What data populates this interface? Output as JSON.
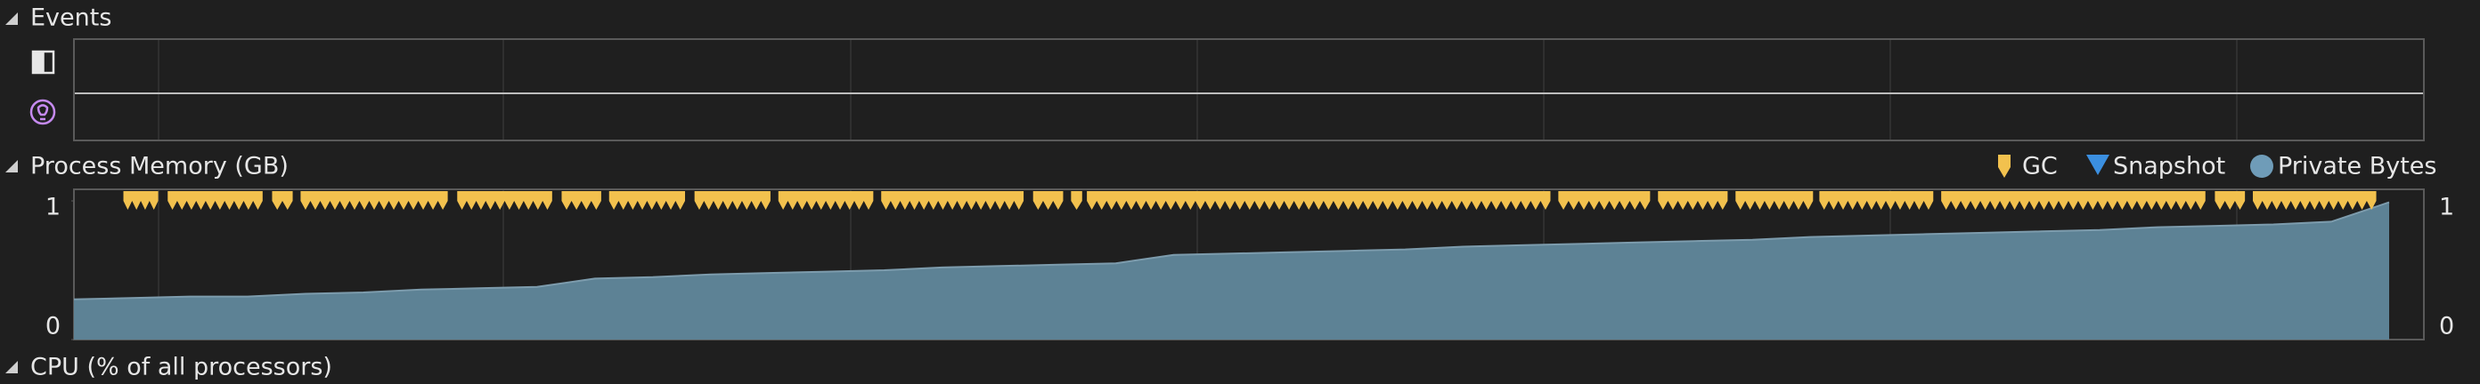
{
  "events": {
    "title": "Events"
  },
  "memory": {
    "title": "Process Memory (GB)",
    "legend": [
      {
        "name": "GC",
        "color": "#f2c14e"
      },
      {
        "name": "Snapshot",
        "color": "#3b8fe0"
      },
      {
        "name": "Private Bytes",
        "color": "#6f9cb8"
      }
    ],
    "chart": {
      "type": "area",
      "color": "#5d8295",
      "ylim": [
        0,
        1
      ],
      "yticks": [
        0,
        1
      ],
      "values": [
        0.29,
        0.3,
        0.31,
        0.31,
        0.33,
        0.34,
        0.36,
        0.37,
        0.38,
        0.44,
        0.45,
        0.47,
        0.48,
        0.49,
        0.5,
        0.52,
        0.53,
        0.54,
        0.55,
        0.61,
        0.62,
        0.63,
        0.64,
        0.65,
        0.67,
        0.68,
        0.69,
        0.7,
        0.71,
        0.72,
        0.74,
        0.75,
        0.76,
        0.77,
        0.78,
        0.79,
        0.81,
        0.82,
        0.83,
        0.85,
        0.99
      ]
    }
  },
  "cpu": {
    "title": "CPU (% of all processors)"
  }
}
